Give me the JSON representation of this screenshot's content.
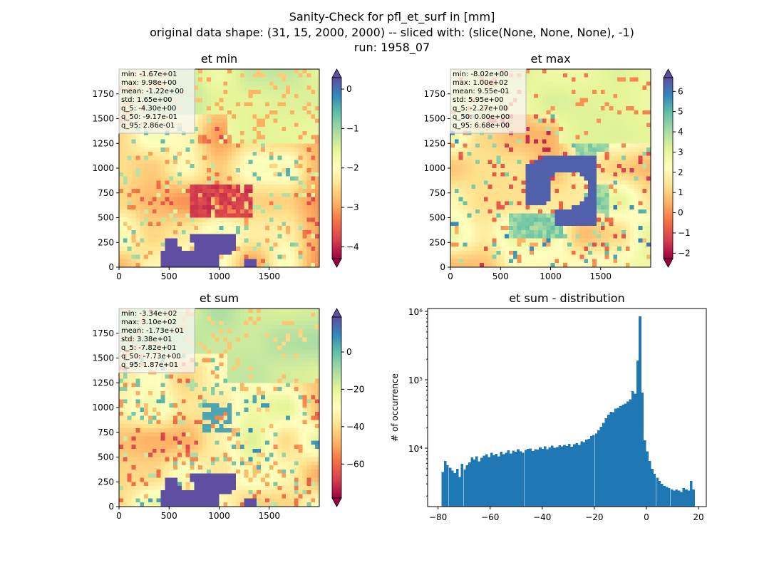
{
  "figure": {
    "title_lines": [
      "Sanity-Check for pfl_et_surf in [mm]",
      "original data shape: (31, 15, 2000, 2000) -- sliced with: (slice(None, None, None), -1)",
      "run: 1958_07"
    ]
  },
  "chart_data": [
    {
      "type": "heatmap",
      "title": "et min",
      "x_ticks": [
        "0",
        "500",
        "1000",
        "1500"
      ],
      "y_ticks": [
        "0",
        "250",
        "500",
        "750",
        "1000",
        "1250",
        "1500",
        "1750"
      ],
      "xlim": [
        0,
        2000
      ],
      "ylim": [
        0,
        2000
      ],
      "colormap": "Spectral",
      "colorbar": {
        "range": [
          -4.3,
          0.29
        ],
        "ticks": [
          0,
          -1,
          -2,
          -3,
          -4
        ],
        "extend": "both"
      },
      "stats": [
        "min: -1.67e+01",
        "max: 9.98e+00",
        "mean: -1.22e+00",
        "std: 1.65e+00",
        "q_5: -4.30e+00",
        "q_50: -9.17e-01",
        "q_95: 2.86e-01"
      ]
    },
    {
      "type": "heatmap",
      "title": "et max",
      "x_ticks": [
        "0",
        "500",
        "1000",
        "1500"
      ],
      "y_ticks": [
        "0",
        "250",
        "500",
        "750",
        "1000",
        "1250",
        "1500",
        "1750"
      ],
      "xlim": [
        0,
        2000
      ],
      "ylim": [
        0,
        2000
      ],
      "colormap": "Spectral",
      "colorbar": {
        "range": [
          -2.27,
          6.68
        ],
        "ticks": [
          -2,
          -1,
          0,
          1,
          2,
          3,
          4,
          5,
          6
        ],
        "extend": "both"
      },
      "stats": [
        "min: -8.02e+00",
        "max: 1.00e+02",
        "mean: 9.55e-01",
        "std: 5.95e+00",
        "q_5: -2.27e+00",
        "q_50: 0.00e+00",
        "q_95: 6.68e+00"
      ]
    },
    {
      "type": "heatmap",
      "title": "et sum",
      "x_ticks": [
        "0",
        "500",
        "1000",
        "1500"
      ],
      "y_ticks": [
        "0",
        "250",
        "500",
        "750",
        "1000",
        "1250",
        "1500",
        "1750"
      ],
      "xlim": [
        0,
        2000
      ],
      "ylim": [
        0,
        2000
      ],
      "colormap": "Spectral",
      "colorbar": {
        "range": [
          -78.2,
          18.7
        ],
        "ticks": [
          0,
          -20,
          -40,
          -60
        ],
        "extend": "both"
      },
      "stats": [
        "min: -3.34e+02",
        "max: 3.10e+02",
        "mean: -1.73e+01",
        "std: 3.38e+01",
        "q_5: -7.82e+01",
        "q_50: -7.73e+00",
        "q_95: 1.87e+01"
      ]
    },
    {
      "type": "bar",
      "title": "et sum - distribution",
      "ylabel": "# of occurrence",
      "xlabel": "",
      "yscale": "log",
      "xlim": [
        -84,
        23
      ],
      "ylim": [
        1400,
        1100000
      ],
      "x_ticks": [
        "−80",
        "−60",
        "−40",
        "−20",
        "0",
        "20"
      ],
      "y_ticks": [
        "10⁴",
        "10⁵",
        "10⁶"
      ],
      "color": "#1f77b4",
      "x": [
        -78.2,
        -77.3,
        -76.4,
        -75.4,
        -74.5,
        -73.6,
        -72.6,
        -71.7,
        -70.8,
        -69.8,
        -68.9,
        -68.0,
        -67.0,
        -66.1,
        -65.2,
        -64.2,
        -63.3,
        -62.3,
        -61.4,
        -60.5,
        -59.5,
        -58.6,
        -57.7,
        -56.7,
        -55.8,
        -54.9,
        -53.9,
        -53.0,
        -52.1,
        -51.1,
        -50.2,
        -49.3,
        -48.3,
        -47.4,
        -46.4,
        -45.5,
        -44.6,
        -43.6,
        -42.7,
        -41.8,
        -40.8,
        -39.9,
        -39.0,
        -38.0,
        -37.1,
        -36.2,
        -35.2,
        -34.3,
        -33.4,
        -32.4,
        -31.5,
        -30.5,
        -29.6,
        -28.7,
        -27.7,
        -26.8,
        -25.9,
        -24.9,
        -24.0,
        -23.1,
        -22.1,
        -21.2,
        -20.3,
        -19.3,
        -18.4,
        -17.5,
        -16.5,
        -15.6,
        -14.6,
        -13.7,
        -12.8,
        -11.8,
        -10.9,
        -10.0,
        -9.0,
        -8.1,
        -7.2,
        -6.2,
        -5.3,
        -4.4,
        -3.4,
        -2.5,
        -1.6,
        -0.6,
        0.3,
        1.3,
        2.2,
        3.1,
        4.1,
        5.0,
        5.9,
        6.9,
        7.8,
        8.7,
        9.7,
        10.6,
        11.5,
        12.5,
        13.4,
        14.3,
        15.3,
        16.2,
        17.1,
        18.1
      ],
      "values": [
        4500,
        6500,
        5600,
        5200,
        4700,
        4300,
        5000,
        3800,
        5900,
        4900,
        5600,
        6200,
        7300,
        6800,
        7600,
        6400,
        7200,
        7800,
        8200,
        7400,
        8600,
        7900,
        8300,
        7600,
        8900,
        8200,
        8600,
        9300,
        8400,
        9200,
        8900,
        9600,
        9000,
        8600,
        9400,
        9800,
        9900,
        9100,
        9700,
        9500,
        10200,
        9800,
        10600,
        9700,
        10300,
        10900,
        10100,
        10400,
        11000,
        10600,
        11200,
        10800,
        11600,
        10500,
        11400,
        11900,
        11200,
        12600,
        12300,
        13400,
        13700,
        15000,
        15600,
        16300,
        18200,
        20500,
        23500,
        27500,
        31000,
        34000,
        33500,
        38000,
        39000,
        41000,
        43000,
        45000,
        48000,
        52000,
        68000,
        63000,
        190000,
        850000,
        65000,
        13000,
        9000,
        6500,
        5000,
        4200,
        3700,
        3300,
        3000,
        2800,
        2700,
        2600,
        2500,
        2400,
        2500,
        2400,
        2300,
        2600,
        2500,
        2400,
        3300,
        2500
      ]
    }
  ]
}
